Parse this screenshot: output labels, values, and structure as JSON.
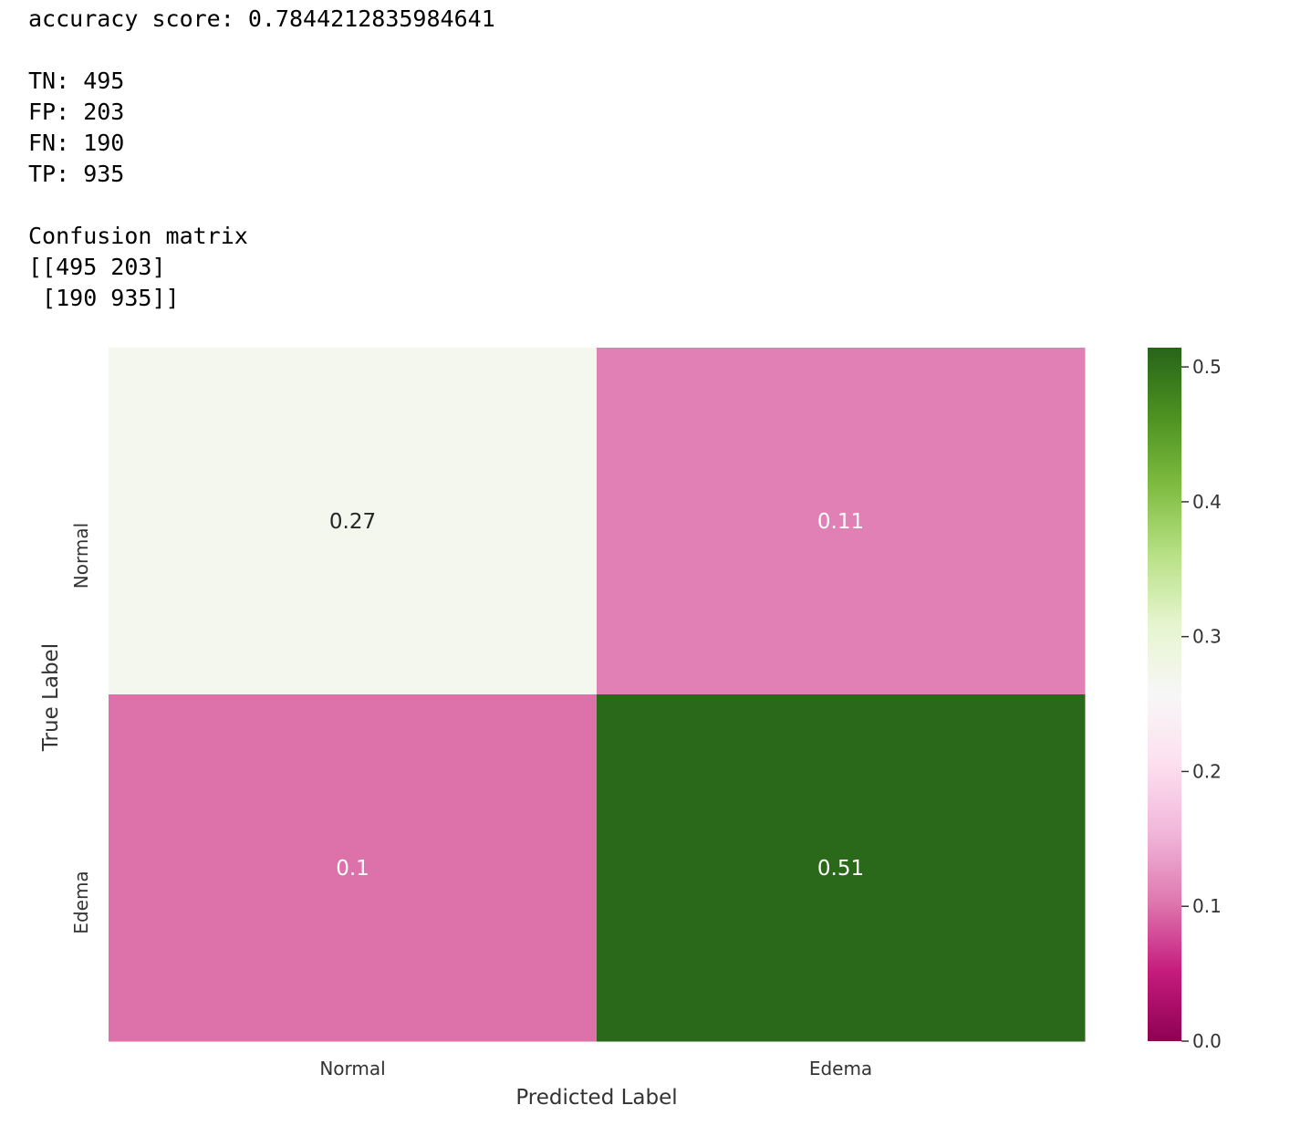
{
  "console_output": {
    "accuracy_line": "accuracy score: 0.7844212835984641",
    "tn_line": "TN: 495",
    "fp_line": "FP: 203",
    "fn_line": "FN: 190",
    "tp_line": "TP: 935",
    "matrix_heading": "Confusion matrix",
    "matrix_row_1": "[[495 203]",
    "matrix_row_2": " [190 935]]"
  },
  "chart_data": {
    "type": "heatmap",
    "x_categories": [
      "Normal",
      "Edema"
    ],
    "y_categories": [
      "Normal",
      "Edema"
    ],
    "values": [
      [
        0.27,
        0.11
      ],
      [
        0.1,
        0.51
      ]
    ],
    "annotations": [
      [
        "0.27",
        "0.11"
      ],
      [
        "0.1",
        "0.51"
      ]
    ],
    "xlabel": "Predicted Label",
    "ylabel": "True Label",
    "colormap": "PiYG",
    "vmin": 0.0,
    "vmax": 0.5143,
    "colorbar_ticks": [
      "0.0",
      "0.1",
      "0.2",
      "0.3",
      "0.4",
      "0.5"
    ],
    "colors": {
      "low": "#8e0152",
      "mid": "#f7f7f7",
      "high": "#276419",
      "annotation_dark_text": "#262626",
      "annotation_light_text": "#ffffff"
    }
  }
}
